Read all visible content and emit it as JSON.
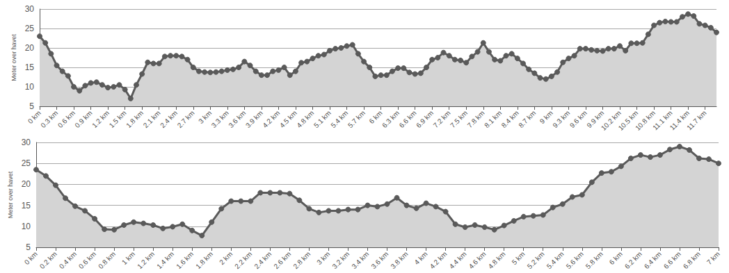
{
  "chart_data": [
    {
      "type": "area",
      "y_label": "Meter over havet",
      "color": "#5a5a5a",
      "marker": "circle",
      "grid": true,
      "x": [
        0,
        0.1,
        0.2,
        0.3,
        0.4,
        0.5,
        0.6,
        0.7,
        0.8,
        0.9,
        1.0,
        1.1,
        1.2,
        1.3,
        1.4,
        1.5,
        1.6,
        1.7,
        1.8,
        1.9,
        2.0,
        2.1,
        2.2,
        2.3,
        2.4,
        2.5,
        2.6,
        2.7,
        2.8,
        2.9,
        3.0,
        3.1,
        3.2,
        3.3,
        3.4,
        3.5,
        3.6,
        3.7,
        3.8,
        3.9,
        4.0,
        4.1,
        4.2,
        4.3,
        4.4,
        4.5,
        4.6,
        4.7,
        4.8,
        4.9,
        5.0,
        5.1,
        5.2,
        5.3,
        5.4,
        5.5,
        5.6,
        5.7,
        5.8,
        5.9,
        6.0,
        6.1,
        6.2,
        6.3,
        6.4,
        6.5,
        6.6,
        6.7,
        6.8,
        6.9,
        7.0,
        7.1,
        7.2,
        7.3,
        7.4,
        7.5,
        7.6,
        7.7,
        7.8,
        7.9,
        8.0,
        8.1,
        8.2,
        8.3,
        8.4,
        8.5,
        8.6,
        8.7,
        8.8,
        8.9,
        9.0,
        9.1,
        9.2,
        9.3,
        9.4,
        9.5,
        9.6,
        9.7,
        9.8,
        9.9,
        10.0,
        10.1,
        10.2,
        10.3,
        10.4,
        10.5,
        10.6,
        10.7,
        10.8,
        10.9,
        11.0,
        11.1,
        11.2,
        11.3,
        11.4,
        11.5,
        11.6,
        11.7,
        11.8,
        11.9
      ],
      "values": [
        23,
        21.3,
        18.5,
        15.5,
        14,
        12.8,
        10,
        9,
        10.3,
        11,
        11.2,
        10.5,
        9.8,
        10,
        10.5,
        9.3,
        7,
        10.5,
        13.3,
        16.3,
        16,
        16,
        17.8,
        18,
        18,
        17.8,
        17,
        15,
        14,
        13.8,
        13.7,
        13.8,
        14,
        14.3,
        14.5,
        15,
        16.5,
        15.5,
        14,
        13,
        13,
        14,
        14.3,
        15,
        13,
        14,
        16.2,
        16.5,
        17.3,
        18,
        18.3,
        19.3,
        19.8,
        20,
        20.5,
        20.8,
        18.5,
        16.5,
        15,
        12.7,
        13,
        13,
        14,
        14.8,
        14.8,
        13.7,
        13.3,
        13.5,
        15,
        17,
        17.5,
        18.8,
        18,
        17,
        16.8,
        16.2,
        17.8,
        19,
        21.3,
        19,
        17,
        16.7,
        18,
        18.5,
        17.3,
        16,
        14.5,
        13.5,
        12.3,
        12,
        12.7,
        13.8,
        16.3,
        17.3,
        18,
        19.8,
        19.8,
        19.5,
        19.3,
        19.2,
        19.8,
        19.8,
        20.5,
        19.3,
        21.2,
        21.2,
        21.3,
        23.5,
        25.8,
        26.5,
        26.8,
        26.7,
        26.7,
        28,
        28.7,
        28.2,
        26.2,
        25.8,
        25.2,
        24
      ],
      "xlim": [
        0,
        11.9
      ],
      "xticks": [
        {
          "value": 0,
          "label": "0 km"
        },
        {
          "value": 0.3,
          "label": "0.3 km"
        },
        {
          "value": 0.6,
          "label": "0.6 km"
        },
        {
          "value": 0.9,
          "label": "0.9 km"
        },
        {
          "value": 1.2,
          "label": "1.2 km"
        },
        {
          "value": 1.5,
          "label": "1.5 km"
        },
        {
          "value": 1.8,
          "label": "1.8 km"
        },
        {
          "value": 2.1,
          "label": "2.1 km"
        },
        {
          "value": 2.4,
          "label": "2.4 km"
        },
        {
          "value": 2.7,
          "label": "2.7 km"
        },
        {
          "value": 3,
          "label": "3 km"
        },
        {
          "value": 3.3,
          "label": "3.3 km"
        },
        {
          "value": 3.6,
          "label": "3.6 km"
        },
        {
          "value": 3.9,
          "label": "3.9 km"
        },
        {
          "value": 4.2,
          "label": "4.2 km"
        },
        {
          "value": 4.5,
          "label": "4.5 km"
        },
        {
          "value": 4.8,
          "label": "4.8 km"
        },
        {
          "value": 5.1,
          "label": "5.1 km"
        },
        {
          "value": 5.4,
          "label": "5.4 km"
        },
        {
          "value": 5.7,
          "label": "5.7 km"
        },
        {
          "value": 6,
          "label": "6 km"
        },
        {
          "value": 6.3,
          "label": "6.3 km"
        },
        {
          "value": 6.6,
          "label": "6.6 km"
        },
        {
          "value": 6.9,
          "label": "6.9 km"
        },
        {
          "value": 7.2,
          "label": "7.2 km"
        },
        {
          "value": 7.5,
          "label": "7.5 km"
        },
        {
          "value": 7.8,
          "label": "7.8 km"
        },
        {
          "value": 8.1,
          "label": "8.1 km"
        },
        {
          "value": 8.4,
          "label": "8.4 km"
        },
        {
          "value": 8.7,
          "label": "8.7 km"
        },
        {
          "value": 9,
          "label": "9 km"
        },
        {
          "value": 9.3,
          "label": "9.3 km"
        },
        {
          "value": 9.6,
          "label": "9.6 km"
        },
        {
          "value": 9.9,
          "label": "9.9 km"
        },
        {
          "value": 10.2,
          "label": "10.2 km"
        },
        {
          "value": 10.5,
          "label": "10.5 km"
        },
        {
          "value": 10.8,
          "label": "10.8 km"
        },
        {
          "value": 11.1,
          "label": "11.1 km"
        },
        {
          "value": 11.4,
          "label": "11.4 km"
        },
        {
          "value": 11.7,
          "label": "11.7 km"
        }
      ],
      "ylim": [
        5,
        30
      ],
      "yticks": [
        5,
        10,
        15,
        20,
        25,
        30
      ]
    },
    {
      "type": "area",
      "y_label": "Meter over havet",
      "color": "#5a5a5a",
      "marker": "circle",
      "grid": true,
      "x": [
        0,
        0.1,
        0.2,
        0.3,
        0.4,
        0.5,
        0.6,
        0.7,
        0.8,
        0.9,
        1.0,
        1.1,
        1.2,
        1.3,
        1.4,
        1.5,
        1.6,
        1.7,
        1.8,
        1.9,
        2.0,
        2.1,
        2.2,
        2.3,
        2.4,
        2.5,
        2.6,
        2.7,
        2.8,
        2.9,
        3.0,
        3.1,
        3.2,
        3.3,
        3.4,
        3.5,
        3.6,
        3.7,
        3.8,
        3.9,
        4.0,
        4.1,
        4.2,
        4.3,
        4.4,
        4.5,
        4.6,
        4.7,
        4.8,
        4.9,
        5.0,
        5.1,
        5.2,
        5.3,
        5.4,
        5.5,
        5.6,
        5.7,
        5.8,
        5.9,
        6.0,
        6.1,
        6.2,
        6.3,
        6.4,
        6.5,
        6.6,
        6.7,
        6.8,
        6.9,
        7.0
      ],
      "values": [
        23.5,
        22,
        19.8,
        16.7,
        14.8,
        13.7,
        11.8,
        9.3,
        9.2,
        10.3,
        11,
        10.7,
        10.3,
        9.5,
        9.9,
        10.5,
        9,
        7.8,
        11,
        14.2,
        16,
        16,
        16,
        18,
        18,
        18,
        17.8,
        16.2,
        14.2,
        13.3,
        13.7,
        13.7,
        14,
        14,
        15,
        14.7,
        15.3,
        16.8,
        15,
        14.3,
        15.5,
        14.7,
        13.5,
        10.5,
        9.8,
        10.3,
        9.8,
        9.2,
        10.2,
        11.3,
        12.3,
        12.5,
        12.7,
        14.5,
        15.3,
        17,
        17.5,
        20.5,
        22.7,
        23,
        24.3,
        26.2,
        27,
        26.5,
        27,
        28.3,
        29,
        28.2,
        26.2,
        26,
        25
      ],
      "xlim": [
        0,
        7
      ],
      "xticks": [
        {
          "value": 0,
          "label": "0 km"
        },
        {
          "value": 0.2,
          "label": "0.2 km"
        },
        {
          "value": 0.4,
          "label": "0.4 km"
        },
        {
          "value": 0.6,
          "label": "0.6 km"
        },
        {
          "value": 0.8,
          "label": "0.8 km"
        },
        {
          "value": 1,
          "label": "1 km"
        },
        {
          "value": 1.2,
          "label": "1.2 km"
        },
        {
          "value": 1.4,
          "label": "1.4 km"
        },
        {
          "value": 1.6,
          "label": "1.6 km"
        },
        {
          "value": 1.8,
          "label": "1.8 km"
        },
        {
          "value": 2,
          "label": "2 km"
        },
        {
          "value": 2.2,
          "label": "2.2 km"
        },
        {
          "value": 2.4,
          "label": "2.4 km"
        },
        {
          "value": 2.6,
          "label": "2.6 km"
        },
        {
          "value": 2.8,
          "label": "2.8 km"
        },
        {
          "value": 3,
          "label": "3 km"
        },
        {
          "value": 3.2,
          "label": "3.2 km"
        },
        {
          "value": 3.4,
          "label": "3.4 km"
        },
        {
          "value": 3.6,
          "label": "3.6 km"
        },
        {
          "value": 3.8,
          "label": "3.8 km"
        },
        {
          "value": 4,
          "label": "4 km"
        },
        {
          "value": 4.2,
          "label": "4.2 km"
        },
        {
          "value": 4.4,
          "label": "4.4 km"
        },
        {
          "value": 4.6,
          "label": "4.6 km"
        },
        {
          "value": 4.8,
          "label": "4.8 km"
        },
        {
          "value": 5,
          "label": "5 km"
        },
        {
          "value": 5.2,
          "label": "5.2 km"
        },
        {
          "value": 5.4,
          "label": "5.4 km"
        },
        {
          "value": 5.6,
          "label": "5.6 km"
        },
        {
          "value": 5.8,
          "label": "5.8 km"
        },
        {
          "value": 6,
          "label": "6 km"
        },
        {
          "value": 6.2,
          "label": "6.2 km"
        },
        {
          "value": 6.4,
          "label": "6.4 km"
        },
        {
          "value": 6.6,
          "label": "6.6 km"
        },
        {
          "value": 6.8,
          "label": "6.8 km"
        },
        {
          "value": 7,
          "label": "7 km"
        }
      ],
      "ylim": [
        5,
        30
      ],
      "yticks": [
        5,
        10,
        15,
        20,
        25,
        30
      ]
    }
  ]
}
